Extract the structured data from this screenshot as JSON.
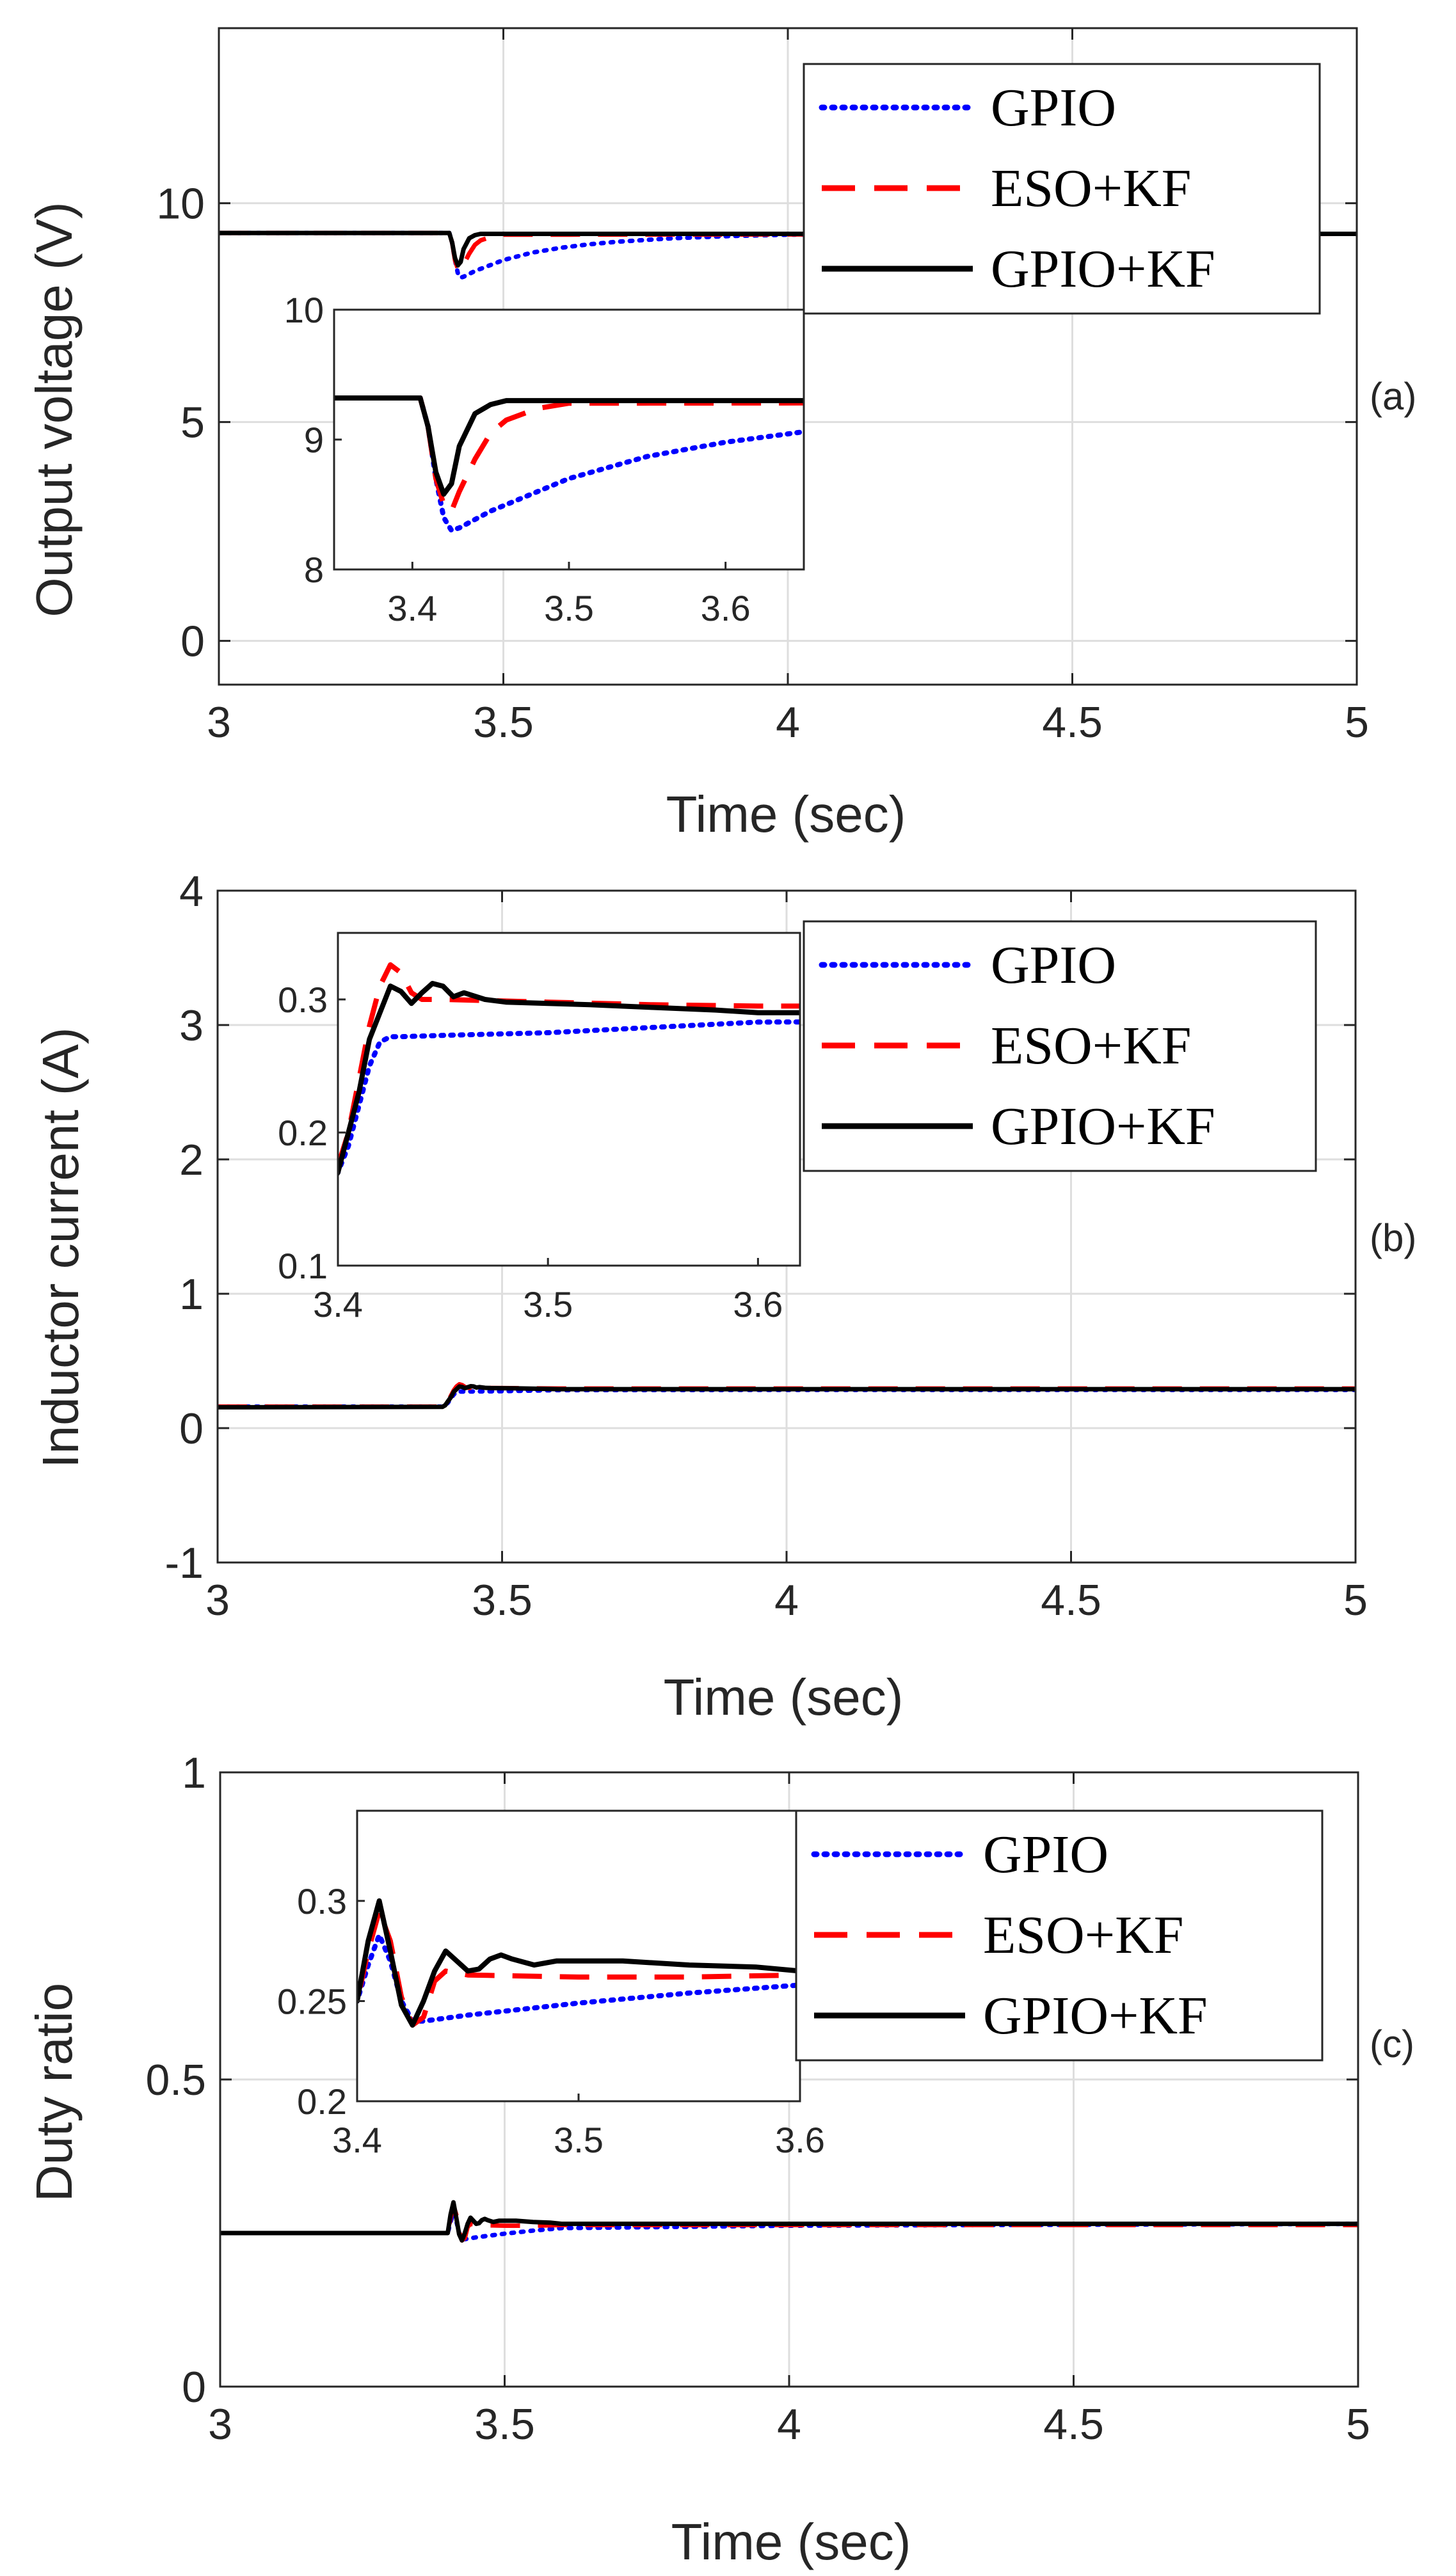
{
  "figure": {
    "panels": [
      {
        "tag": "(a)",
        "ylabel": "Output voltage (V)",
        "xlabel": "Time (sec)"
      },
      {
        "tag": "(b)",
        "ylabel": "Inductor current (A)",
        "xlabel": "Time (sec)"
      },
      {
        "tag": "(c)",
        "ylabel": "Duty ratio",
        "xlabel": "Time (sec)"
      }
    ]
  },
  "chart_data": [
    {
      "type": "line",
      "id": "a",
      "title": "",
      "xlabel": "Time (sec)",
      "ylabel": "Output voltage (V)",
      "xlim": [
        3,
        5
      ],
      "ylim": [
        -1,
        14
      ],
      "xticks": [
        3,
        3.5,
        4,
        4.5,
        5
      ],
      "xtick_labels": [
        "3",
        "3.5",
        "4",
        "4.5",
        "5"
      ],
      "yticks": [
        0,
        5,
        10
      ],
      "ytick_labels": [
        "0",
        "5",
        "10"
      ],
      "grid": true,
      "legend_position": "top-right",
      "series": [
        {
          "name": "GPIO",
          "color": "#0000ff",
          "style": "dotted",
          "x": [
            3,
            3.405,
            3.41,
            3.415,
            3.42,
            3.425,
            3.43,
            3.45,
            3.5,
            3.55,
            3.6,
            3.65,
            3.7,
            3.8,
            3.9,
            4.0,
            4.5,
            5
          ],
          "y": [
            9.32,
            9.32,
            9.1,
            8.7,
            8.4,
            8.3,
            8.32,
            8.45,
            8.7,
            8.87,
            8.98,
            9.06,
            9.12,
            9.2,
            9.25,
            9.28,
            9.3,
            9.3
          ]
        },
        {
          "name": "ESO+KF",
          "color": "#ff0000",
          "style": "dashed",
          "x": [
            3,
            3.405,
            3.41,
            3.415,
            3.42,
            3.425,
            3.43,
            3.44,
            3.45,
            3.46,
            3.48,
            3.5,
            5
          ],
          "y": [
            9.32,
            9.32,
            9.1,
            8.7,
            8.5,
            8.45,
            8.6,
            8.85,
            9.05,
            9.15,
            9.24,
            9.28,
            9.3
          ]
        },
        {
          "name": "GPIO+KF",
          "color": "#000000",
          "style": "solid",
          "x": [
            3,
            3.405,
            3.41,
            3.415,
            3.42,
            3.425,
            3.43,
            3.44,
            3.45,
            3.46,
            3.48,
            3.5,
            5
          ],
          "y": [
            9.32,
            9.32,
            9.1,
            8.75,
            8.58,
            8.66,
            8.95,
            9.2,
            9.27,
            9.3,
            9.3,
            9.3,
            9.3
          ]
        }
      ],
      "inset": {
        "xlim": [
          3.35,
          3.65
        ],
        "ylim": [
          8,
          10
        ],
        "xticks": [
          3.4,
          3.5,
          3.6
        ],
        "xtick_labels": [
          "3.4",
          "3.5",
          "3.6"
        ],
        "yticks": [
          8,
          9,
          10
        ],
        "ytick_labels": [
          "8",
          "9",
          "10"
        ]
      }
    },
    {
      "type": "line",
      "id": "b",
      "title": "",
      "xlabel": "Time (sec)",
      "ylabel": "Inductor current (A)",
      "xlim": [
        3,
        5
      ],
      "ylim": [
        -1,
        4
      ],
      "xticks": [
        3,
        3.5,
        4,
        4.5,
        5
      ],
      "xtick_labels": [
        "3",
        "3.5",
        "4",
        "4.5",
        "5"
      ],
      "yticks": [
        -1,
        0,
        1,
        2,
        3,
        4
      ],
      "ytick_labels": [
        "-1",
        "0",
        "1",
        "2",
        "3",
        "4"
      ],
      "grid": true,
      "legend_position": "top-right",
      "series": [
        {
          "name": "GPIO",
          "color": "#0000ff",
          "style": "dotted",
          "x": [
            3,
            3.395,
            3.4,
            3.405,
            3.41,
            3.415,
            3.42,
            3.425,
            3.43,
            3.45,
            3.5,
            3.55,
            3.6,
            4,
            5
          ],
          "y": [
            0.16,
            0.16,
            0.17,
            0.19,
            0.22,
            0.25,
            0.268,
            0.272,
            0.272,
            0.273,
            0.275,
            0.279,
            0.283,
            0.285,
            0.285
          ]
        },
        {
          "name": "ESO+KF",
          "color": "#ff0000",
          "style": "dashed",
          "x": [
            3,
            3.395,
            3.4,
            3.405,
            3.41,
            3.415,
            3.42,
            3.425,
            3.43,
            3.435,
            3.44,
            3.45,
            3.5,
            3.55,
            3.6,
            4,
            5
          ],
          "y": [
            0.16,
            0.16,
            0.175,
            0.2,
            0.24,
            0.28,
            0.31,
            0.326,
            0.32,
            0.305,
            0.3,
            0.3,
            0.298,
            0.296,
            0.295,
            0.295,
            0.295
          ]
        },
        {
          "name": "GPIO+KF",
          "color": "#000000",
          "style": "solid",
          "x": [
            3,
            3.395,
            3.4,
            3.405,
            3.41,
            3.415,
            3.42,
            3.425,
            3.43,
            3.435,
            3.44,
            3.445,
            3.45,
            3.455,
            3.46,
            3.47,
            3.48,
            3.5,
            3.52,
            3.55,
            3.58,
            3.6,
            4,
            5
          ],
          "y": [
            0.155,
            0.158,
            0.17,
            0.2,
            0.23,
            0.27,
            0.29,
            0.31,
            0.306,
            0.297,
            0.305,
            0.312,
            0.31,
            0.302,
            0.305,
            0.3,
            0.298,
            0.297,
            0.296,
            0.294,
            0.292,
            0.29,
            0.29,
            0.29
          ]
        }
      ],
      "inset": {
        "xlim": [
          3.4,
          3.62
        ],
        "ylim": [
          0.1,
          0.35
        ],
        "xticks": [
          3.4,
          3.5,
          3.6
        ],
        "xtick_labels": [
          "3.4",
          "3.5",
          "3.6"
        ],
        "yticks": [
          0.1,
          0.2,
          0.3
        ],
        "ytick_labels": [
          "0.1",
          "0.2",
          "0.3"
        ]
      }
    },
    {
      "type": "line",
      "id": "c",
      "title": "",
      "xlabel": "Time (sec)",
      "ylabel": "Duty ratio",
      "xlim": [
        3,
        5
      ],
      "ylim": [
        0,
        1
      ],
      "xticks": [
        3,
        3.5,
        4,
        4.5,
        5
      ],
      "xtick_labels": [
        "3",
        "3.5",
        "4",
        "4.5",
        "5"
      ],
      "yticks": [
        0,
        0.5,
        1
      ],
      "ytick_labels": [
        "0",
        "0.5",
        "1"
      ],
      "grid": true,
      "legend_position": "top-right",
      "series": [
        {
          "name": "GPIO",
          "color": "#0000ff",
          "style": "dotted",
          "x": [
            3,
            3.4,
            3.405,
            3.41,
            3.415,
            3.42,
            3.425,
            3.43,
            3.45,
            3.5,
            3.55,
            3.6,
            4,
            5
          ],
          "y": [
            0.25,
            0.25,
            0.268,
            0.283,
            0.27,
            0.25,
            0.24,
            0.24,
            0.243,
            0.249,
            0.254,
            0.258,
            0.262,
            0.265
          ]
        },
        {
          "name": "ESO+KF",
          "color": "#ff0000",
          "style": "dashed",
          "x": [
            3,
            3.4,
            3.405,
            3.41,
            3.415,
            3.42,
            3.425,
            3.43,
            3.435,
            3.44,
            3.45,
            3.5,
            3.55,
            3.6,
            4,
            5
          ],
          "y": [
            0.25,
            0.25,
            0.275,
            0.295,
            0.28,
            0.252,
            0.238,
            0.242,
            0.26,
            0.265,
            0.263,
            0.262,
            0.262,
            0.263,
            0.263,
            0.263
          ]
        },
        {
          "name": "GPIO+KF",
          "color": "#000000",
          "style": "solid",
          "x": [
            3,
            3.4,
            3.405,
            3.41,
            3.415,
            3.42,
            3.425,
            3.43,
            3.435,
            3.44,
            3.445,
            3.45,
            3.455,
            3.46,
            3.465,
            3.47,
            3.48,
            3.49,
            3.5,
            3.52,
            3.55,
            3.58,
            3.6,
            4,
            5
          ],
          "y": [
            0.25,
            0.25,
            0.28,
            0.3,
            0.275,
            0.248,
            0.238,
            0.25,
            0.265,
            0.275,
            0.27,
            0.265,
            0.266,
            0.271,
            0.273,
            0.271,
            0.268,
            0.27,
            0.27,
            0.27,
            0.268,
            0.267,
            0.265,
            0.265,
            0.265
          ]
        }
      ],
      "inset": {
        "xlim": [
          3.4,
          3.6
        ],
        "ylim": [
          0.2,
          0.345
        ],
        "xticks": [
          3.4,
          3.5,
          3.6
        ],
        "xtick_labels": [
          "3.4",
          "3.5",
          "3.6"
        ],
        "yticks": [
          0.2,
          0.25,
          0.3
        ],
        "ytick_labels": [
          "0.2",
          "0.25",
          "0.3"
        ]
      }
    }
  ]
}
